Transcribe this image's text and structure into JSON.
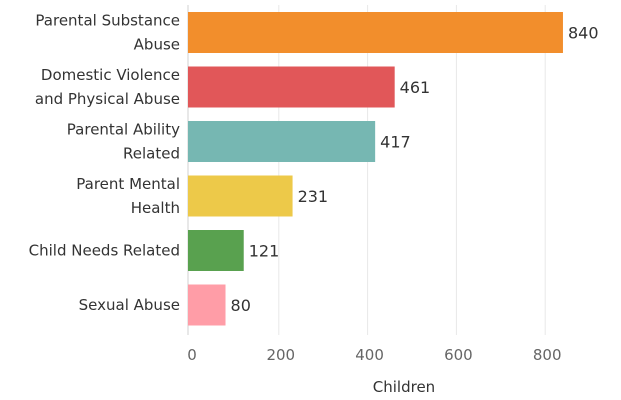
{
  "chart_data": {
    "type": "bar",
    "orientation": "horizontal",
    "categories": [
      [
        "Parental Substance",
        "Abuse"
      ],
      [
        "Domestic Violence",
        "and Physical Abuse"
      ],
      [
        "Parental Ability",
        "Related"
      ],
      [
        "Parent Mental",
        "Health"
      ],
      [
        "Child Needs Related"
      ],
      [
        "Sexual Abuse"
      ]
    ],
    "values": [
      840,
      461,
      417,
      231,
      121,
      80
    ],
    "colors": [
      "#f28e2c",
      "#e15759",
      "#76b7b2",
      "#edc949",
      "#59a14f",
      "#ff9da7"
    ],
    "xlabel": "Children",
    "ylabel": "",
    "xlim": [
      0,
      950
    ],
    "xticks": [
      0,
      200,
      400,
      600,
      800
    ],
    "grid": true,
    "legend": "none"
  }
}
